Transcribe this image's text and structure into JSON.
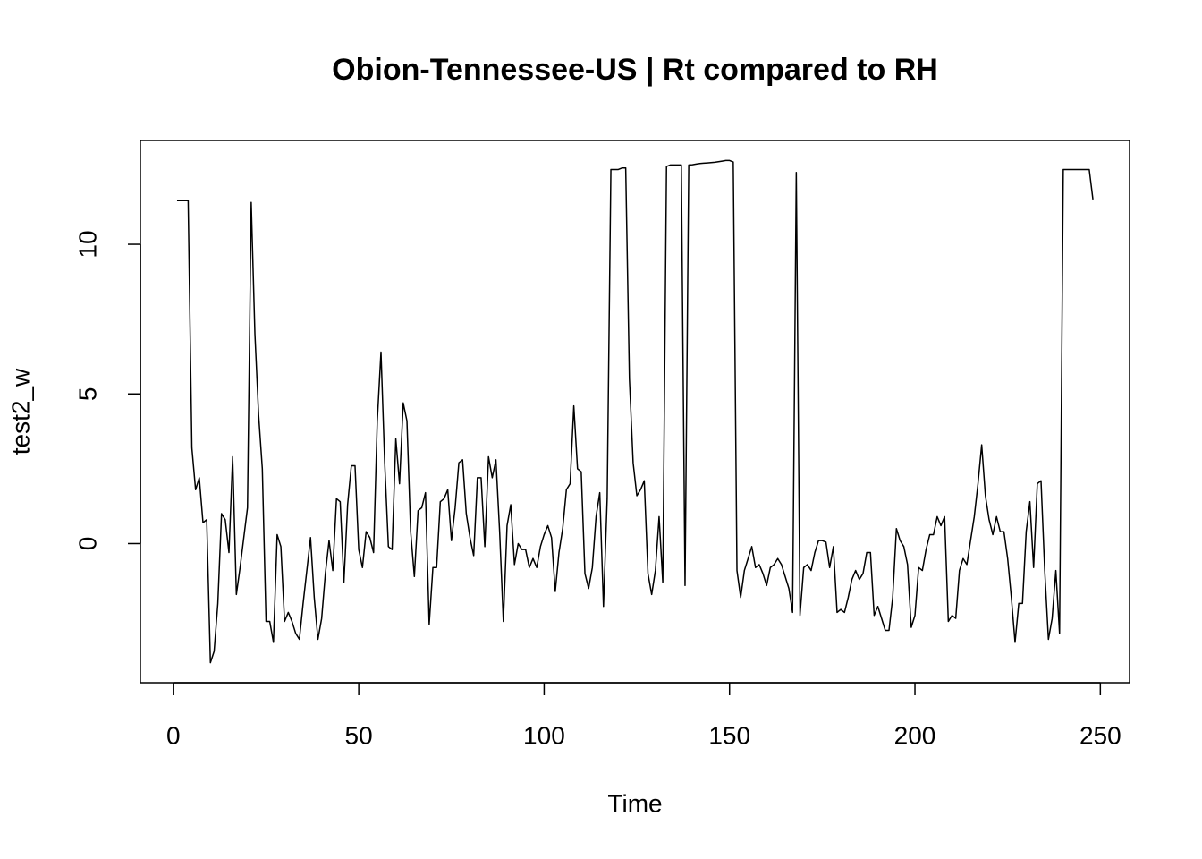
{
  "chart_data": {
    "type": "line",
    "title": "Obion-Tennessee-US | Rt compared to RH",
    "x_label": "Time",
    "y_label": "test2_w",
    "xlim": [
      -8.88,
      257.88
    ],
    "ylim": [
      -4.65,
      13.47
    ],
    "xticks": [
      0,
      50,
      100,
      150,
      200,
      250
    ],
    "yticks": [
      0,
      5,
      10
    ],
    "x": [
      1,
      2,
      3,
      4,
      5,
      6,
      7,
      8,
      9,
      10,
      11,
      12,
      13,
      14,
      15,
      16,
      17,
      18,
      19,
      20,
      21,
      22,
      23,
      24,
      25,
      26,
      27,
      28,
      29,
      30,
      31,
      32,
      33,
      34,
      35,
      36,
      37,
      38,
      39,
      40,
      41,
      42,
      43,
      44,
      45,
      46,
      47,
      48,
      49,
      50,
      51,
      52,
      53,
      54,
      55,
      56,
      57,
      58,
      59,
      60,
      61,
      62,
      63,
      64,
      65,
      66,
      67,
      68,
      69,
      70,
      71,
      72,
      73,
      74,
      75,
      76,
      77,
      78,
      79,
      80,
      81,
      82,
      83,
      84,
      85,
      86,
      87,
      88,
      89,
      90,
      91,
      92,
      93,
      94,
      95,
      96,
      97,
      98,
      99,
      100,
      101,
      102,
      103,
      104,
      105,
      106,
      107,
      108,
      109,
      110,
      111,
      112,
      113,
      114,
      115,
      116,
      117,
      118,
      119,
      120,
      121,
      122,
      123,
      124,
      125,
      126,
      127,
      128,
      129,
      130,
      131,
      132,
      133,
      134,
      135,
      136,
      137,
      138,
      139,
      140,
      141,
      142,
      143,
      144,
      145,
      146,
      147,
      148,
      149,
      150,
      151,
      152,
      153,
      154,
      155,
      156,
      157,
      158,
      159,
      160,
      161,
      162,
      163,
      164,
      165,
      166,
      167,
      168,
      169,
      170,
      171,
      172,
      173,
      174,
      175,
      176,
      177,
      178,
      179,
      180,
      181,
      182,
      183,
      184,
      185,
      186,
      187,
      188,
      189,
      190,
      191,
      192,
      193,
      194,
      195,
      196,
      197,
      198,
      199,
      200,
      201,
      202,
      203,
      204,
      205,
      206,
      207,
      208,
      209,
      210,
      211,
      212,
      213,
      214,
      215,
      216,
      217,
      218,
      219,
      220,
      221,
      222,
      223,
      224,
      225,
      226,
      227,
      228,
      229,
      230,
      231,
      232,
      233,
      234,
      235,
      236,
      237,
      238,
      239,
      240,
      241,
      242,
      243,
      244,
      245,
      246,
      247,
      248
    ],
    "series": [
      {
        "color": "#000000",
        "values": [
          11.46,
          11.46,
          11.46,
          11.46,
          3.2,
          1.8,
          2.2,
          0.7,
          0.8,
          -3.98,
          -3.6,
          -2.0,
          1.0,
          0.8,
          -0.3,
          2.9,
          -1.7,
          -0.8,
          0.2,
          1.2,
          11.4,
          7.0,
          4.3,
          2.5,
          -2.6,
          -2.6,
          -3.3,
          0.3,
          -0.1,
          -2.6,
          -2.3,
          -2.6,
          -3.0,
          -3.2,
          -2.0,
          -0.9,
          0.2,
          -1.8,
          -3.2,
          -2.5,
          -1.0,
          0.1,
          -0.9,
          1.5,
          1.4,
          -1.3,
          1.3,
          2.6,
          2.6,
          -0.2,
          -0.8,
          0.4,
          0.2,
          -0.3,
          4.1,
          6.4,
          2.7,
          -0.1,
          -0.2,
          3.5,
          2.0,
          4.7,
          4.1,
          0.4,
          -1.1,
          1.1,
          1.2,
          1.7,
          -2.7,
          -0.8,
          -0.8,
          1.4,
          1.5,
          1.8,
          0.1,
          1.2,
          2.7,
          2.8,
          1.0,
          0.2,
          -0.4,
          2.2,
          2.2,
          -0.1,
          2.9,
          2.2,
          2.8,
          0.4,
          -2.6,
          0.6,
          1.3,
          -0.7,
          0.0,
          -0.2,
          -0.2,
          -0.8,
          -0.5,
          -0.8,
          -0.1,
          0.3,
          0.6,
          0.2,
          -1.6,
          -0.3,
          0.5,
          1.8,
          2.0,
          4.6,
          2.5,
          2.4,
          -1.0,
          -1.5,
          -0.8,
          0.9,
          1.7,
          -2.1,
          1.5,
          12.5,
          12.5,
          12.5,
          12.55,
          12.55,
          5.5,
          2.7,
          1.6,
          1.8,
          2.1,
          -1.0,
          -1.7,
          -0.9,
          0.9,
          -1.3,
          12.6,
          12.65,
          12.65,
          12.65,
          12.65,
          -1.4,
          12.65,
          12.66,
          12.68,
          12.7,
          12.71,
          12.72,
          12.73,
          12.74,
          12.76,
          12.78,
          12.8,
          12.8,
          12.75,
          -0.9,
          -1.8,
          -0.9,
          -0.5,
          -0.1,
          -0.8,
          -0.7,
          -1.0,
          -1.4,
          -0.8,
          -0.7,
          -0.5,
          -0.7,
          -1.1,
          -1.5,
          -2.3,
          12.4,
          -2.4,
          -0.8,
          -0.7,
          -0.9,
          -0.3,
          0.1,
          0.1,
          0.05,
          -0.8,
          -0.1,
          -2.3,
          -2.2,
          -2.3,
          -1.8,
          -1.2,
          -0.9,
          -1.2,
          -1.0,
          -0.3,
          -0.3,
          -2.4,
          -2.1,
          -2.5,
          -2.9,
          -2.9,
          -1.8,
          0.5,
          0.1,
          -0.1,
          -0.7,
          -2.8,
          -2.4,
          -0.8,
          -0.9,
          -0.2,
          0.3,
          0.3,
          0.9,
          0.6,
          0.9,
          -2.6,
          -2.4,
          -2.5,
          -0.9,
          -0.5,
          -0.7,
          0.1,
          0.9,
          2.0,
          3.3,
          1.6,
          0.8,
          0.3,
          0.9,
          0.4,
          0.4,
          -0.5,
          -1.8,
          -3.3,
          -2.0,
          -2.0,
          0.4,
          1.4,
          -0.8,
          2.0,
          2.1,
          -0.9,
          -3.2,
          -2.5,
          -0.9,
          -3.0,
          12.5,
          12.5,
          12.5,
          12.5,
          12.5,
          12.5,
          12.5,
          12.5,
          11.5
        ]
      }
    ]
  }
}
